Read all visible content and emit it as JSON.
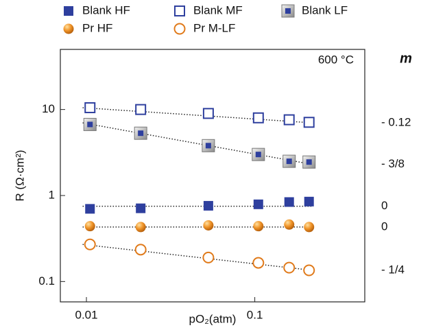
{
  "chart_data": {
    "type": "scatter",
    "x_label": "pO₂(atm)",
    "y_label": "R (Ω·cm²)",
    "annotation": "600 °C",
    "slope_header": "m",
    "log_x": true,
    "log_y": true,
    "xlim": [
      0.007,
      0.45
    ],
    "ylim": [
      0.058,
      50
    ],
    "xticks": [
      0.01,
      0.1
    ],
    "yticks": [
      0.1,
      1,
      10
    ],
    "x": [
      0.0105,
      0.021,
      0.053,
      0.105,
      0.16,
      0.21
    ],
    "series": [
      {
        "name": "Blank HF",
        "marker": "square",
        "color": "#2e3f9e",
        "values": [
          0.7,
          0.71,
          0.76,
          0.79,
          0.84,
          0.85
        ]
      },
      {
        "name": "Blank MF",
        "marker": "open-square",
        "color": "#2e3f9e",
        "values": [
          10.5,
          10,
          9,
          8,
          7.6,
          7.1
        ]
      },
      {
        "name": "Blank LF",
        "marker": "boxed-square",
        "color": "#2e3f9e",
        "values": [
          6.7,
          5.3,
          3.8,
          3.0,
          2.5,
          2.45
        ]
      },
      {
        "name": "Pr HF",
        "marker": "circle",
        "color": "#e07a1a",
        "values": [
          0.44,
          0.43,
          0.45,
          0.44,
          0.46,
          0.43
        ]
      },
      {
        "name": "Pr M-LF",
        "marker": "open-circle",
        "color": "#e07a1a",
        "values": [
          0.27,
          0.235,
          0.19,
          0.165,
          0.145,
          0.135
        ]
      }
    ],
    "fit_lines": [
      {
        "label": "- 0.12",
        "x": [
          0.0095,
          0.22
        ],
        "y": [
          10.5,
          7.0
        ]
      },
      {
        "label": "- 3/8",
        "x": [
          0.0095,
          0.22
        ],
        "y": [
          7.0,
          2.3
        ]
      },
      {
        "label": "0",
        "x": [
          0.0095,
          0.22
        ],
        "y": [
          0.75,
          0.75
        ]
      },
      {
        "label": "0",
        "x": [
          0.0095,
          0.22
        ],
        "y": [
          0.43,
          0.43
        ]
      },
      {
        "label": "- 1/4",
        "x": [
          0.0095,
          0.22
        ],
        "y": [
          0.27,
          0.135
        ]
      }
    ]
  }
}
